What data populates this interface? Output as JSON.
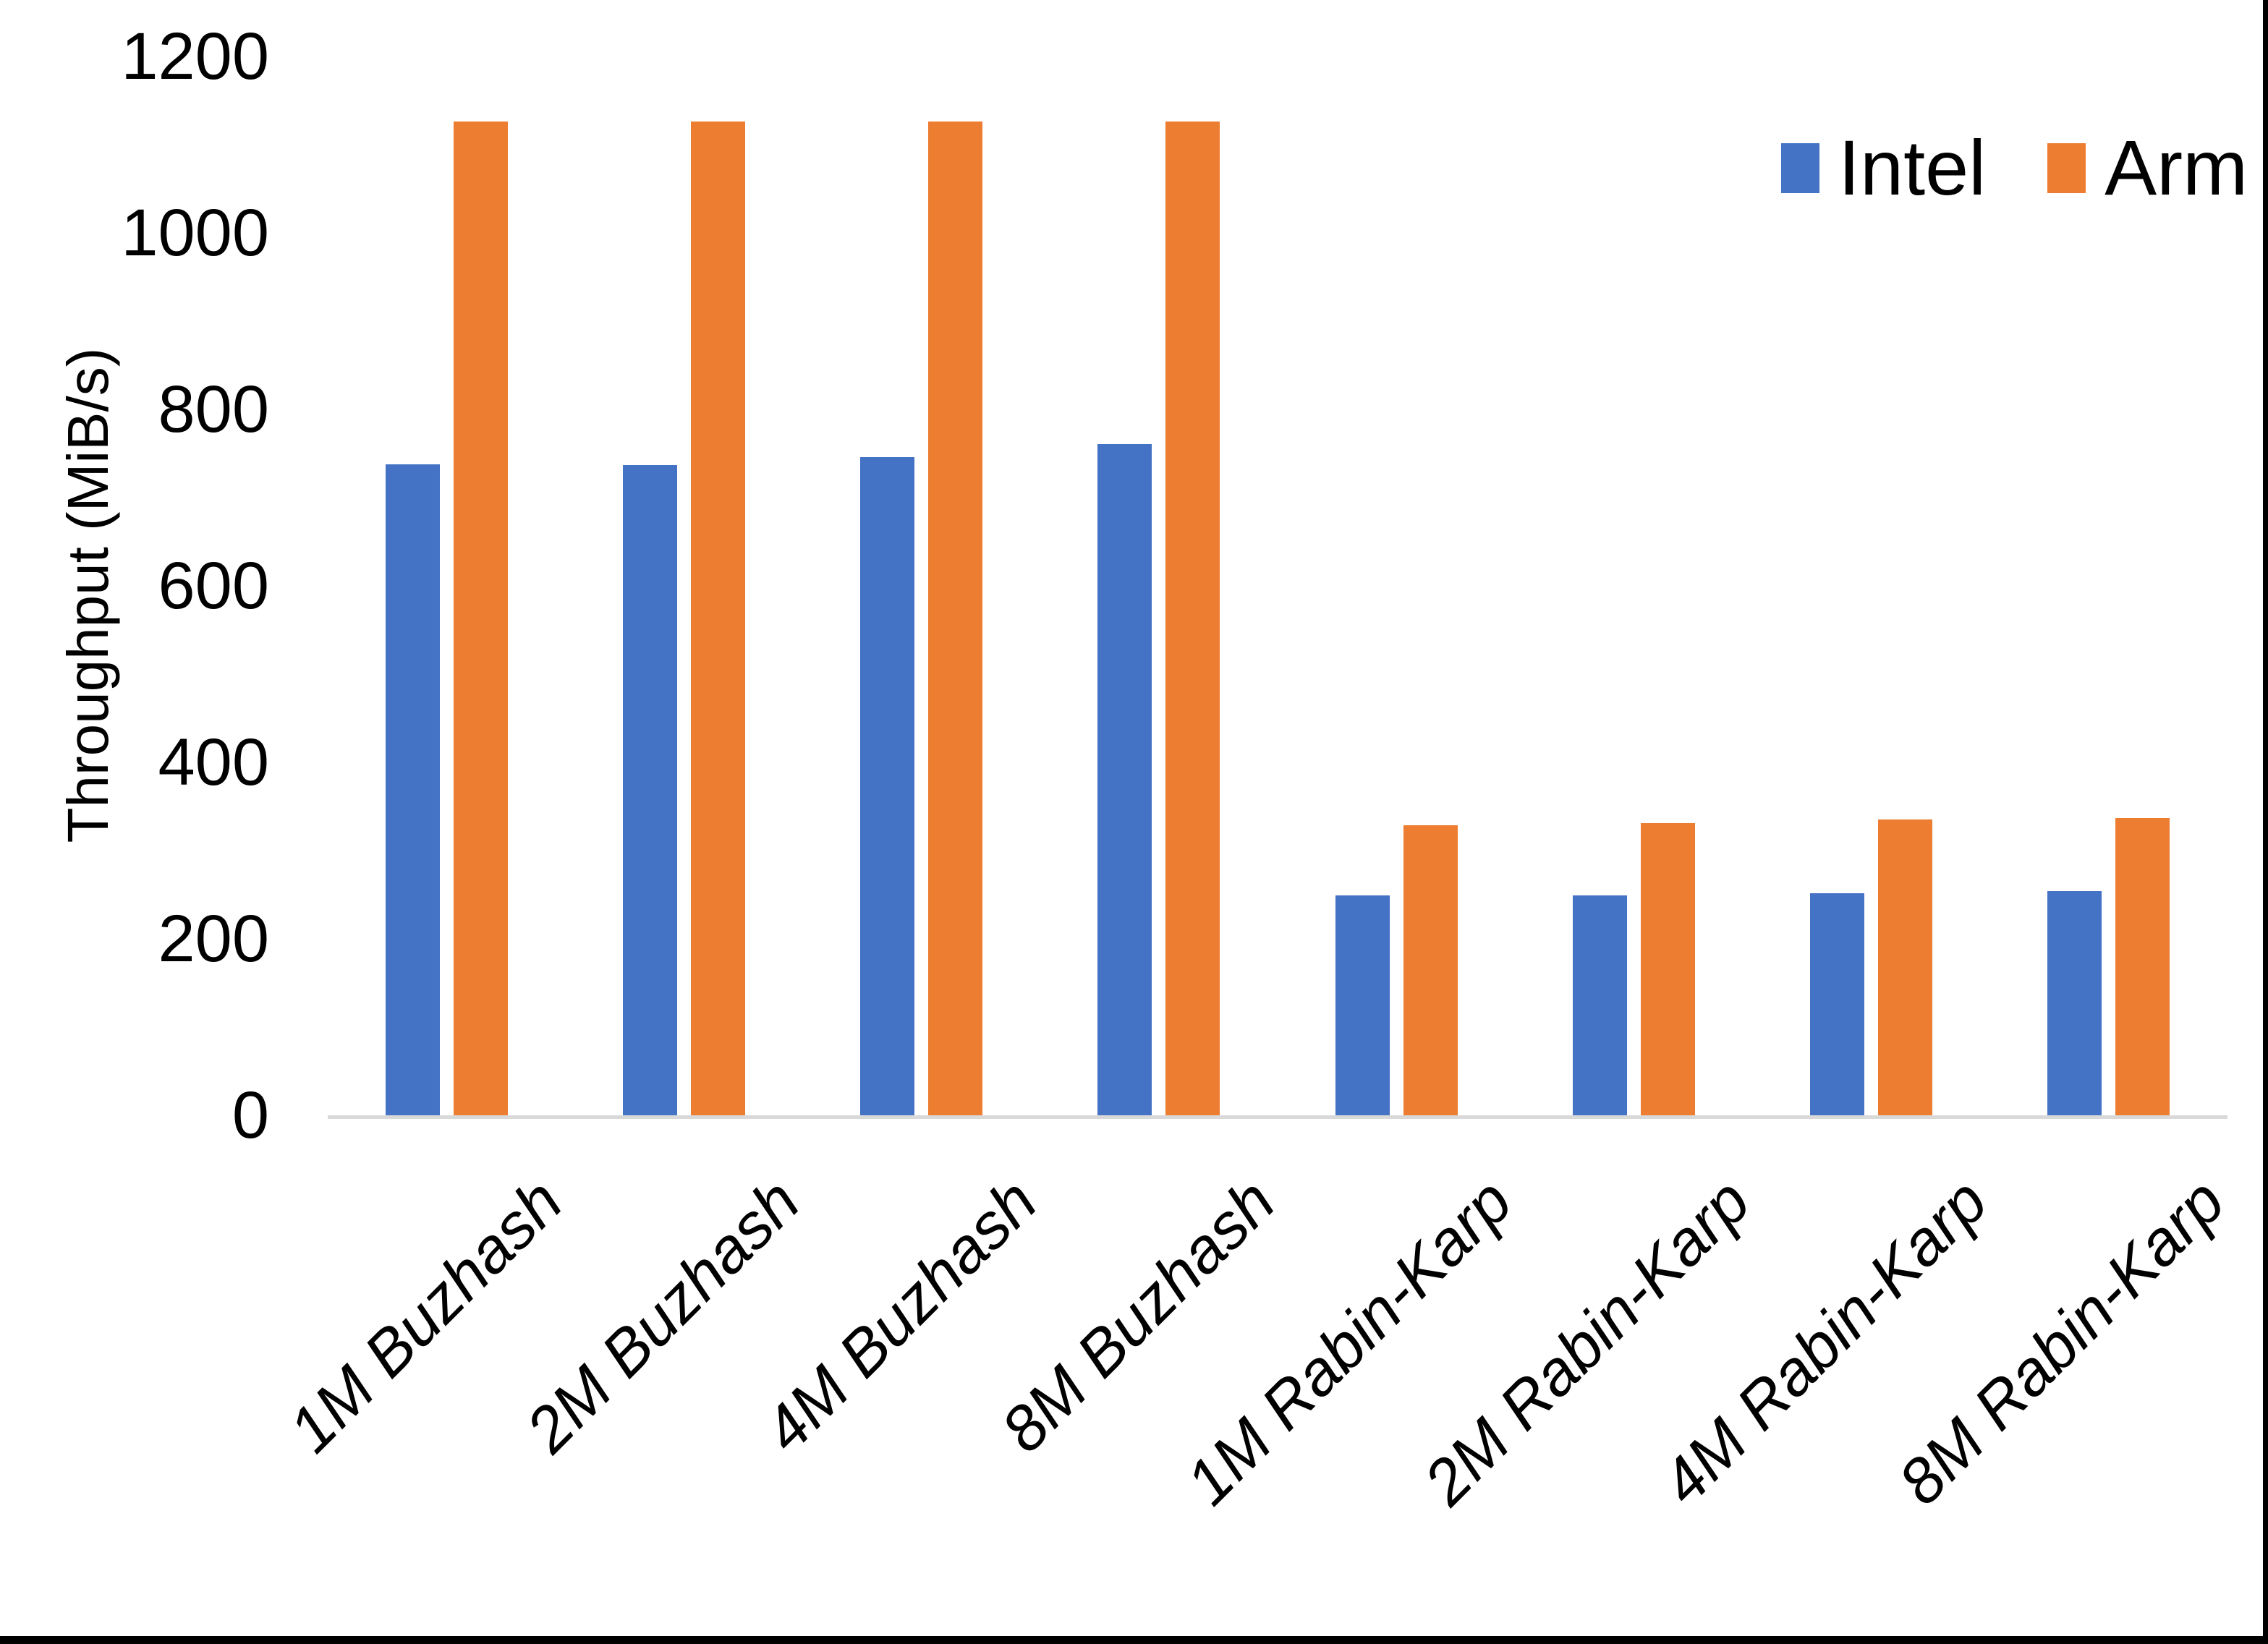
{
  "chart_data": {
    "type": "bar",
    "title": "",
    "categories": [
      "1M Buzhash",
      "2M Buzhash",
      "4M Buzhash",
      "8M Buzhash",
      "1M Rabin-Karp",
      "2M Rabin-Karp",
      "4M Rabin-Karp",
      "8M Rabin-Karp"
    ],
    "series": [
      {
        "name": "Intel",
        "color": "#4472C4",
        "values": [
          738,
          737,
          746,
          761,
          249,
          249,
          252,
          254
        ]
      },
      {
        "name": "Arm",
        "color": "#ED7D31",
        "values": [
          1126,
          1126,
          1126,
          1126,
          329,
          331,
          335,
          337
        ]
      }
    ],
    "xlabel": "",
    "ylabel": "Throughput (MiB/s)",
    "ylim": [
      0,
      1200
    ],
    "yticks": [
      0,
      200,
      400,
      600,
      800,
      1000,
      1200
    ],
    "ytick_labels": [
      "0",
      "200",
      "400",
      "600",
      "800",
      "1000",
      "1200"
    ],
    "grid": false,
    "legend_position": "top-right",
    "colors": {
      "axis_line": "#d9d9d9",
      "text": "#000000",
      "background": "#ffffff",
      "page_border": "#000000"
    }
  }
}
